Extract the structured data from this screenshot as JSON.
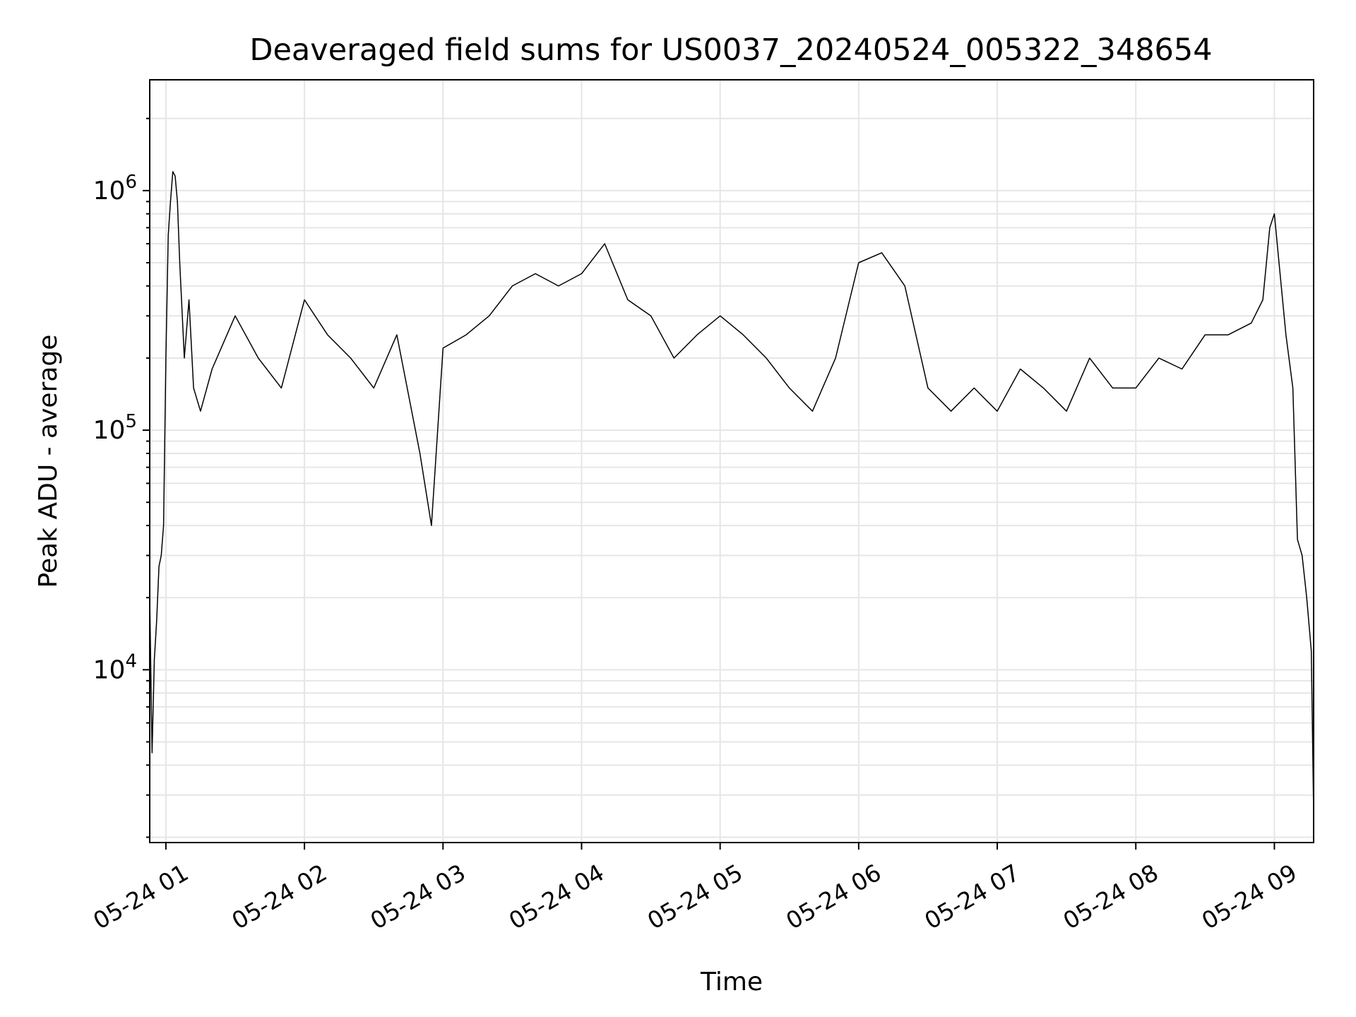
{
  "chart_data": {
    "type": "line",
    "title": "Deaveraged field sums for US0037_20240524_005322_348654",
    "xlabel": "Time",
    "ylabel": "Peak ADU - average",
    "yscale": "log",
    "xlim": [
      "2024-05-24 00:53",
      "2024-05-24 09:17"
    ],
    "ylim": [
      1900,
      2900000
    ],
    "grid": true,
    "line_color": "#000000",
    "x_ticks": [
      {
        "label": "05-24 01",
        "value": "2024-05-24 01:00"
      },
      {
        "label": "05-24 02",
        "value": "2024-05-24 02:00"
      },
      {
        "label": "05-24 03",
        "value": "2024-05-24 03:00"
      },
      {
        "label": "05-24 04",
        "value": "2024-05-24 04:00"
      },
      {
        "label": "05-24 05",
        "value": "2024-05-24 05:00"
      },
      {
        "label": "05-24 06",
        "value": "2024-05-24 06:00"
      },
      {
        "label": "05-24 07",
        "value": "2024-05-24 07:00"
      },
      {
        "label": "05-24 08",
        "value": "2024-05-24 08:00"
      },
      {
        "label": "05-24 09",
        "value": "2024-05-24 09:00"
      }
    ],
    "y_ticks": [
      {
        "base": "10",
        "exp": "4",
        "value": 10000
      },
      {
        "base": "10",
        "exp": "5",
        "value": 100000
      },
      {
        "base": "10",
        "exp": "6",
        "value": 1000000
      }
    ],
    "series": [
      {
        "x": [
          "2024-05-24 00:53",
          "2024-05-24 00:54",
          "2024-05-24 00:55",
          "2024-05-24 00:56",
          "2024-05-24 00:57",
          "2024-05-24 00:58",
          "2024-05-24 00:59",
          "2024-05-24 01:00",
          "2024-05-24 01:01",
          "2024-05-24 01:02",
          "2024-05-24 01:03",
          "2024-05-24 01:04",
          "2024-05-24 01:05",
          "2024-05-24 01:06",
          "2024-05-24 01:08",
          "2024-05-24 01:10",
          "2024-05-24 01:12",
          "2024-05-24 01:15",
          "2024-05-24 01:20",
          "2024-05-24 01:30",
          "2024-05-24 01:40",
          "2024-05-24 01:50",
          "2024-05-24 02:00",
          "2024-05-24 02:10",
          "2024-05-24 02:20",
          "2024-05-24 02:30",
          "2024-05-24 02:40",
          "2024-05-24 02:50",
          "2024-05-24 02:55",
          "2024-05-24 03:00",
          "2024-05-24 03:10",
          "2024-05-24 03:20",
          "2024-05-24 03:30",
          "2024-05-24 03:40",
          "2024-05-24 03:50",
          "2024-05-24 04:00",
          "2024-05-24 04:10",
          "2024-05-24 04:20",
          "2024-05-24 04:30",
          "2024-05-24 04:40",
          "2024-05-24 04:50",
          "2024-05-24 05:00",
          "2024-05-24 05:10",
          "2024-05-24 05:20",
          "2024-05-24 05:30",
          "2024-05-24 05:40",
          "2024-05-24 05:50",
          "2024-05-24 06:00",
          "2024-05-24 06:10",
          "2024-05-24 06:20",
          "2024-05-24 06:30",
          "2024-05-24 06:40",
          "2024-05-24 06:50",
          "2024-05-24 07:00",
          "2024-05-24 07:10",
          "2024-05-24 07:20",
          "2024-05-24 07:30",
          "2024-05-24 07:40",
          "2024-05-24 07:50",
          "2024-05-24 08:00",
          "2024-05-24 08:10",
          "2024-05-24 08:20",
          "2024-05-24 08:30",
          "2024-05-24 08:40",
          "2024-05-24 08:50",
          "2024-05-24 08:55",
          "2024-05-24 08:58",
          "2024-05-24 09:00",
          "2024-05-24 09:02",
          "2024-05-24 09:05",
          "2024-05-24 09:08",
          "2024-05-24 09:10",
          "2024-05-24 09:12",
          "2024-05-24 09:14",
          "2024-05-24 09:16",
          "2024-05-24 09:17"
        ],
        "y": [
          20000,
          4500,
          11000,
          16000,
          27000,
          30000,
          40000,
          200000,
          650000,
          900000,
          1200000,
          1150000,
          900000,
          500000,
          200000,
          350000,
          150000,
          120000,
          180000,
          300000,
          200000,
          150000,
          350000,
          250000,
          200000,
          150000,
          250000,
          80000,
          40000,
          220000,
          250000,
          300000,
          400000,
          450000,
          400000,
          450000,
          600000,
          350000,
          300000,
          200000,
          250000,
          300000,
          250000,
          200000,
          150000,
          120000,
          200000,
          500000,
          550000,
          400000,
          150000,
          120000,
          150000,
          120000,
          180000,
          150000,
          120000,
          200000,
          150000,
          150000,
          200000,
          180000,
          250000,
          250000,
          280000,
          350000,
          700000,
          800000,
          500000,
          250000,
          150000,
          35000,
          30000,
          20000,
          12000,
          2500
        ]
      }
    ]
  }
}
